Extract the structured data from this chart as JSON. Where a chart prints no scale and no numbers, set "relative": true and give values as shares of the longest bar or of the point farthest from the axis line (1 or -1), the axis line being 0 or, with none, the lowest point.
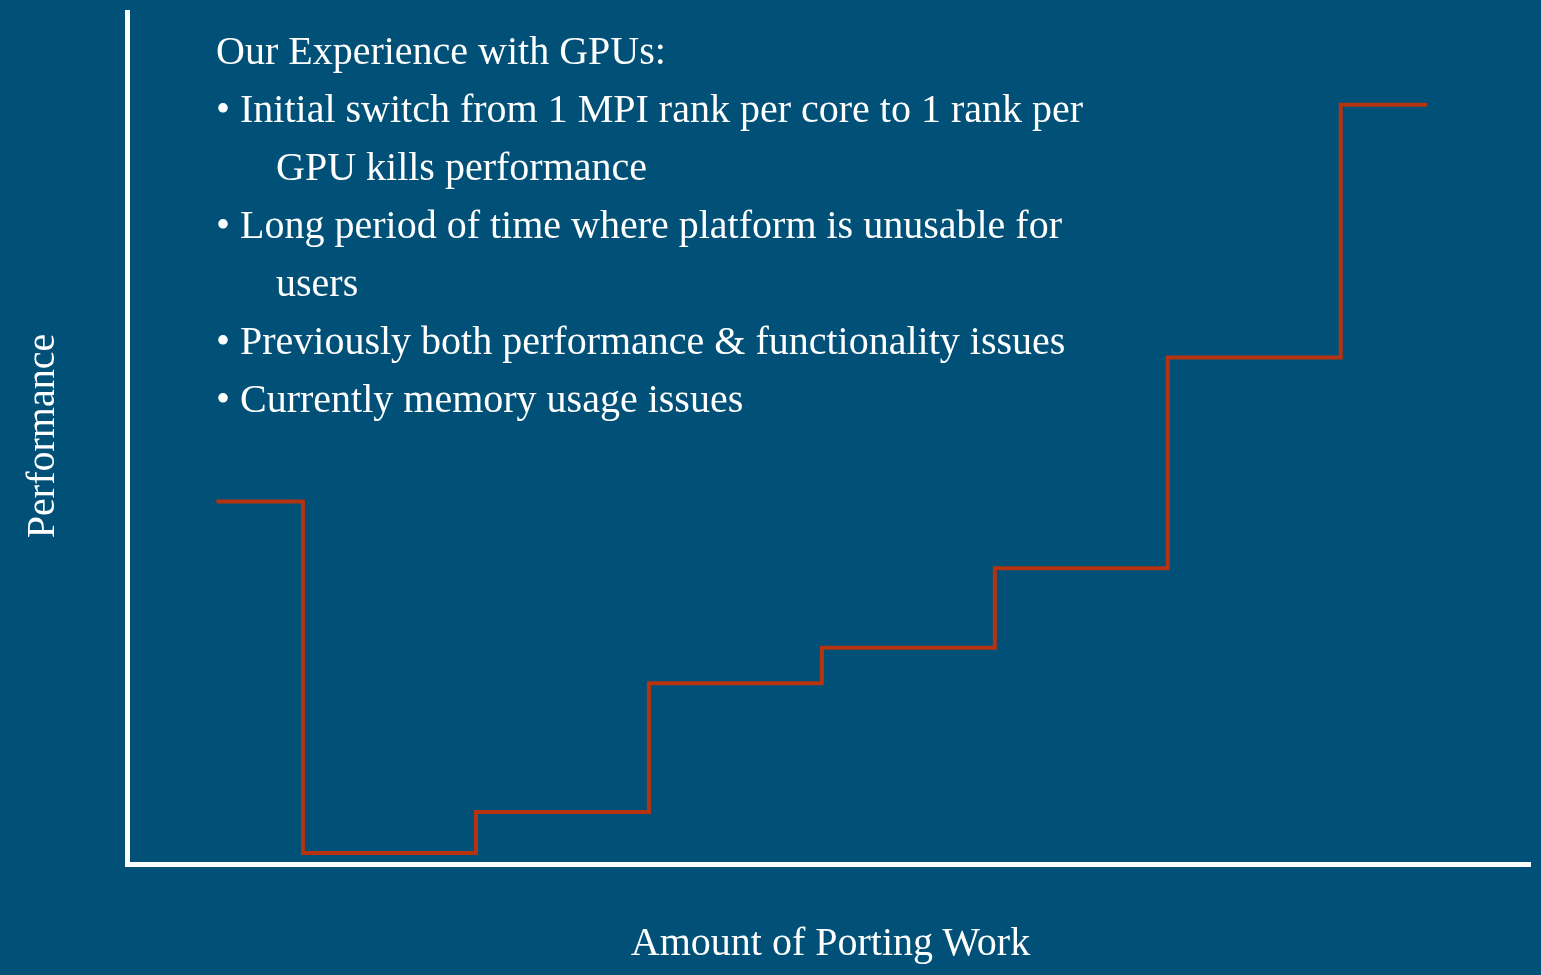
{
  "chart_data": {
    "type": "step",
    "relative": true,
    "title": "Our Experience with GPUs:",
    "annotations": [
      "• Initial switch from 1 MPI rank per core to 1 rank per GPU kills performance",
      "• Long period of time where platform is unusable for users",
      "• Previously both performance & functionality issues",
      "• Currently memory usage issues"
    ],
    "xlabel": "Amount of Porting Work",
    "ylabel": "Performance",
    "categories": [
      null,
      null,
      null,
      null,
      null,
      null,
      null,
      null
    ],
    "series": [
      {
        "color": "#b5330f",
        "values": [
          0.476,
          0.012,
          0.066,
          0.236,
          0.283,
          0.388,
          0.666,
          1
        ]
      }
    ],
    "grid": false,
    "marker": "none",
    "line_style": "solid"
  }
}
